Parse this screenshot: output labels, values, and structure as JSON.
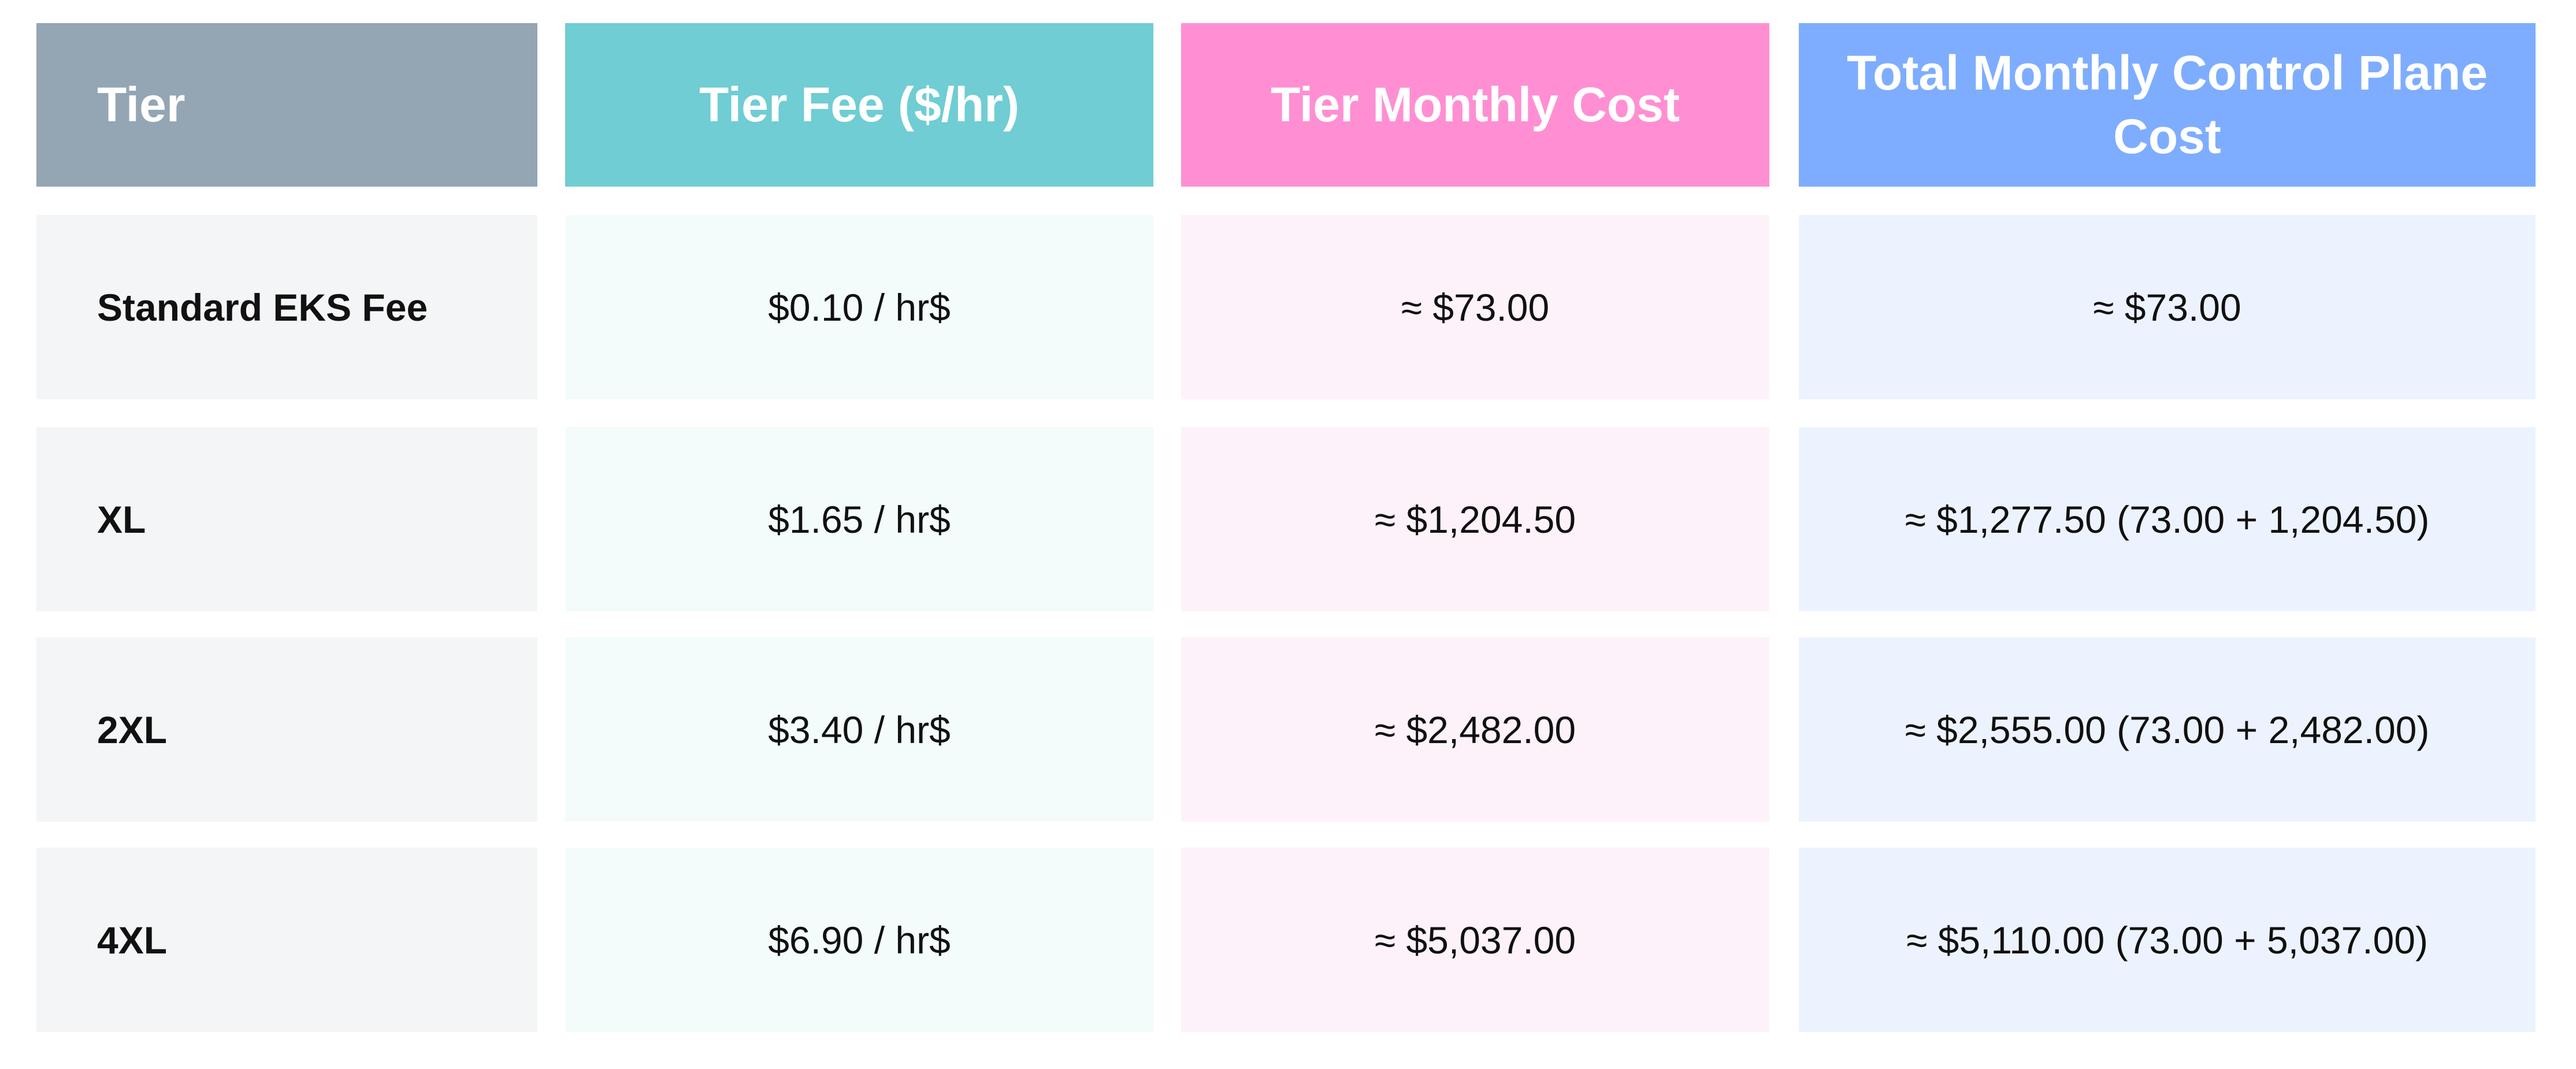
{
  "headers": [
    "Tier",
    "Tier Fee ($/hr)",
    "Tier Monthly Cost",
    "Total Monthly Control Plane Cost"
  ],
  "rows": [
    [
      "Standard EKS Fee",
      "$0.10 / hr$",
      "≈ $73.00",
      "≈ $73.00"
    ],
    [
      "XL",
      "$1.65 / hr$",
      "≈ $1,204.50",
      "≈ $1,277.50 (73.00 + 1,204.50)"
    ],
    [
      "2XL",
      "$3.40 / hr$",
      "≈ $2,482.00",
      "≈ $2,555.00 (73.00 + 2,482.00)"
    ],
    [
      "4XL",
      "$6.90 / hr$",
      "≈ $5,037.00",
      "≈ $5,110.00 (73.00 + 5,037.00)"
    ]
  ],
  "colors": {
    "header_tier": "#94a5b4",
    "header_fee": "#6fcdd3",
    "header_monthly": "#ff8fd2",
    "header_total": "#7eadff"
  }
}
